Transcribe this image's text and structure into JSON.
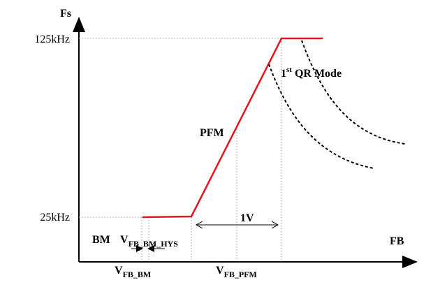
{
  "axes": {
    "y_label": "Fs",
    "x_label": "FB",
    "y_ticks": [
      "125kHz",
      "25kHz"
    ]
  },
  "labels": {
    "pfm": "PFM",
    "qr_mode": {
      "number": "1",
      "superscript": "st",
      "text": "QR Mode"
    },
    "span": "1V",
    "bm": "BM",
    "v_hys": {
      "main": "V",
      "sub": "FB_BM_HYS"
    },
    "v_bm": {
      "main": "V",
      "sub": "FB_BM"
    },
    "v_pfm": {
      "main": "V",
      "sub": "FB_PFM"
    }
  }
}
